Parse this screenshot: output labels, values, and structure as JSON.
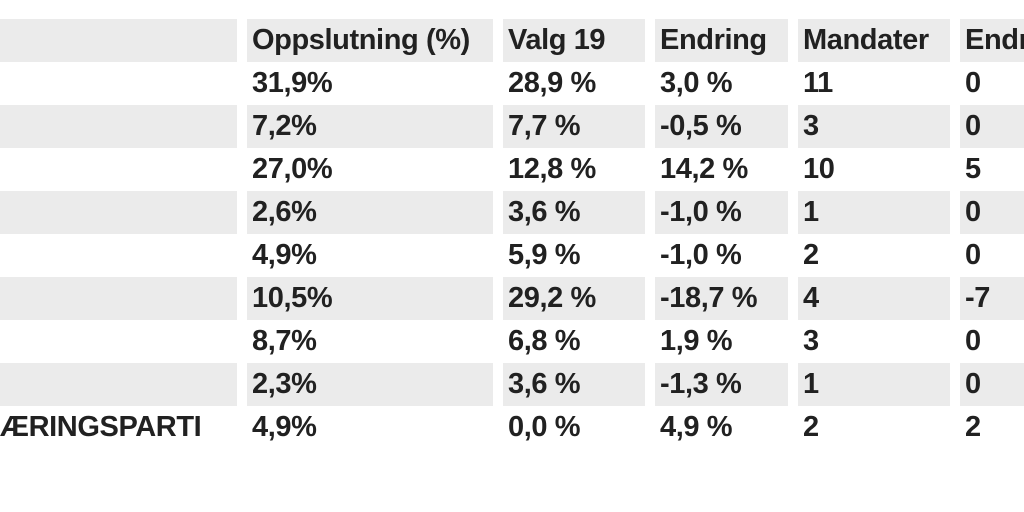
{
  "table": {
    "headers": [
      "",
      "Oppslutning (%)",
      "Valg 19",
      "Endring",
      "Mandater",
      "Endring"
    ],
    "column_keys": [
      "party",
      "oppslutning-pct",
      "valg19",
      "endring-pct",
      "mandater",
      "endring-mandater"
    ],
    "rows": [
      [
        "",
        "31,9%",
        "28,9 %",
        "3,0 %",
        "11",
        "0"
      ],
      [
        "",
        "7,2%",
        "7,7 %",
        "-0,5 %",
        "3",
        "0"
      ],
      [
        "",
        "27,0%",
        "12,8 %",
        "14,2 %",
        "10",
        "5"
      ],
      [
        "",
        "2,6%",
        "3,6 %",
        "-1,0 %",
        "1",
        "0"
      ],
      [
        "",
        "4,9%",
        "5,9 %",
        "-1,0 %",
        "2",
        "0"
      ],
      [
        "",
        "10,5%",
        "29,2 %",
        "-18,7 %",
        "4",
        "-7"
      ],
      [
        "",
        "8,7%",
        "6,8 %",
        "1,9 %",
        "3",
        "0"
      ],
      [
        "",
        "2,3%",
        "3,6 %",
        "-1,3 %",
        "1",
        "0"
      ],
      [
        "ÆRINGSPARTI",
        "4,9%",
        "0,0 %",
        "4,9 %",
        "2",
        "2"
      ]
    ],
    "colors": {
      "header_bg": "#ebebeb",
      "row_alt_bg": "#ebebeb",
      "row_bg": "#ffffff",
      "text": "#212121",
      "gutter": "#ffffff"
    }
  }
}
